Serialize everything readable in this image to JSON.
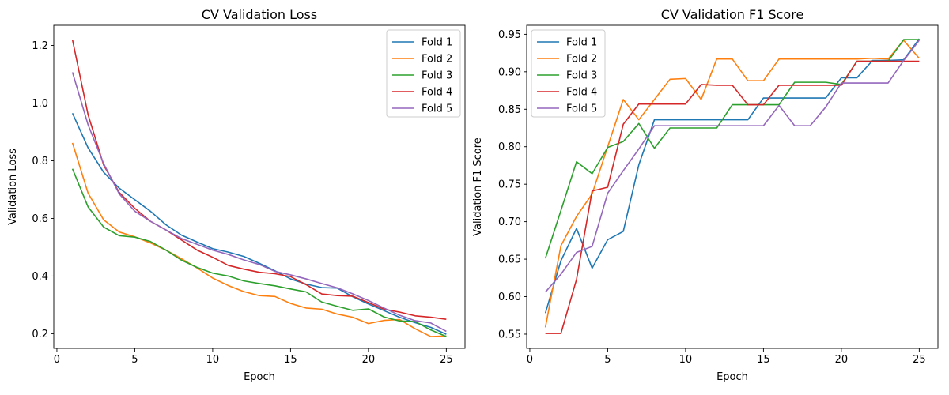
{
  "chart_data": [
    {
      "type": "line",
      "title": "CV Validation Loss",
      "xlabel": "Epoch",
      "ylabel": "Validation Loss",
      "xlim": [
        -0.2,
        26.2
      ],
      "ylim": [
        0.149,
        1.27
      ],
      "xticks": [
        0,
        5,
        10,
        15,
        20,
        25
      ],
      "yticks": [
        0.2,
        0.4,
        0.6,
        0.8,
        1.0,
        1.2
      ],
      "ytick_decimals": 1,
      "legend": "top-right",
      "grid": false,
      "x": [
        1,
        2,
        3,
        4,
        5,
        6,
        7,
        8,
        9,
        10,
        11,
        12,
        13,
        14,
        15,
        16,
        17,
        18,
        19,
        20,
        21,
        22,
        23,
        24,
        25
      ],
      "series": [
        {
          "name": "Fold 1",
          "color": "#1f77b4",
          "values": [
            0.965,
            0.845,
            0.76,
            0.705,
            0.665,
            0.625,
            0.578,
            0.542,
            0.518,
            0.495,
            0.483,
            0.468,
            0.444,
            0.418,
            0.39,
            0.372,
            0.36,
            0.358,
            0.328,
            0.303,
            0.28,
            0.257,
            0.238,
            0.222,
            0.198
          ]
        },
        {
          "name": "Fold 2",
          "color": "#ff7f0e",
          "values": [
            0.862,
            0.688,
            0.595,
            0.553,
            0.536,
            0.515,
            0.49,
            0.46,
            0.428,
            0.393,
            0.367,
            0.346,
            0.332,
            0.329,
            0.305,
            0.289,
            0.285,
            0.268,
            0.257,
            0.235,
            0.246,
            0.249,
            0.217,
            0.19,
            0.192
          ]
        },
        {
          "name": "Fold 3",
          "color": "#2ca02c",
          "values": [
            0.772,
            0.64,
            0.57,
            0.54,
            0.535,
            0.52,
            0.49,
            0.455,
            0.43,
            0.41,
            0.4,
            0.383,
            0.374,
            0.366,
            0.355,
            0.345,
            0.31,
            0.295,
            0.281,
            0.286,
            0.258,
            0.244,
            0.242,
            0.213,
            0.19
          ]
        },
        {
          "name": "Fold 4",
          "color": "#d62728",
          "values": [
            1.22,
            0.96,
            0.785,
            0.69,
            0.635,
            0.59,
            0.56,
            0.525,
            0.49,
            0.465,
            0.437,
            0.424,
            0.413,
            0.408,
            0.398,
            0.37,
            0.338,
            0.332,
            0.33,
            0.308,
            0.285,
            0.275,
            0.262,
            0.257,
            0.25
          ]
        },
        {
          "name": "Fold 5",
          "color": "#9467bd",
          "values": [
            1.107,
            0.925,
            0.79,
            0.685,
            0.625,
            0.59,
            0.56,
            0.53,
            0.51,
            0.49,
            0.475,
            0.456,
            0.44,
            0.416,
            0.404,
            0.39,
            0.374,
            0.359,
            0.338,
            0.315,
            0.289,
            0.264,
            0.245,
            0.237,
            0.208
          ]
        }
      ]
    },
    {
      "type": "line",
      "title": "CV Validation F1 Score",
      "xlabel": "Epoch",
      "ylabel": "Validation F1 Score",
      "xlim": [
        -0.2,
        26.2
      ],
      "ylim": [
        0.531,
        0.962
      ],
      "xticks": [
        0,
        5,
        10,
        15,
        20,
        25
      ],
      "yticks": [
        0.55,
        0.6,
        0.65,
        0.7,
        0.75,
        0.8,
        0.85,
        0.9,
        0.95
      ],
      "ytick_decimals": 2,
      "legend": "top-left",
      "grid": false,
      "x": [
        1,
        2,
        3,
        4,
        5,
        6,
        7,
        8,
        9,
        10,
        11,
        12,
        13,
        14,
        15,
        16,
        17,
        18,
        19,
        20,
        21,
        22,
        23,
        24,
        25
      ],
      "series": [
        {
          "name": "Fold 1",
          "color": "#1f77b4",
          "values": [
            0.578,
            0.648,
            0.691,
            0.638,
            0.676,
            0.687,
            0.776,
            0.836,
            0.836,
            0.836,
            0.836,
            0.836,
            0.836,
            0.836,
            0.865,
            0.865,
            0.865,
            0.865,
            0.865,
            0.892,
            0.892,
            0.915,
            0.915,
            0.916,
            0.944
          ]
        },
        {
          "name": "Fold 2",
          "color": "#ff7f0e",
          "values": [
            0.559,
            0.668,
            0.707,
            0.737,
            0.8,
            0.863,
            0.836,
            0.863,
            0.89,
            0.891,
            0.863,
            0.917,
            0.917,
            0.888,
            0.888,
            0.917,
            0.917,
            0.917,
            0.917,
            0.917,
            0.917,
            0.918,
            0.917,
            0.942,
            0.918
          ]
        },
        {
          "name": "Fold 3",
          "color": "#2ca02c",
          "values": [
            0.651,
            0.715,
            0.78,
            0.764,
            0.799,
            0.807,
            0.831,
            0.798,
            0.825,
            0.825,
            0.825,
            0.825,
            0.856,
            0.856,
            0.856,
            0.856,
            0.886,
            0.886,
            0.886,
            0.883,
            0.914,
            0.914,
            0.914,
            0.943,
            0.943
          ]
        },
        {
          "name": "Fold 4",
          "color": "#d62728",
          "values": [
            0.551,
            0.551,
            0.623,
            0.741,
            0.746,
            0.83,
            0.857,
            0.857,
            0.857,
            0.857,
            0.883,
            0.882,
            0.882,
            0.856,
            0.856,
            0.882,
            0.882,
            0.882,
            0.882,
            0.882,
            0.914,
            0.914,
            0.914,
            0.914,
            0.914
          ]
        },
        {
          "name": "Fold 5",
          "color": "#9467bd",
          "values": [
            0.606,
            0.63,
            0.659,
            0.667,
            0.738,
            0.768,
            0.797,
            0.828,
            0.828,
            0.828,
            0.828,
            0.828,
            0.828,
            0.828,
            0.828,
            0.855,
            0.828,
            0.828,
            0.853,
            0.885,
            0.885,
            0.885,
            0.885,
            0.915,
            0.942
          ]
        }
      ]
    }
  ]
}
